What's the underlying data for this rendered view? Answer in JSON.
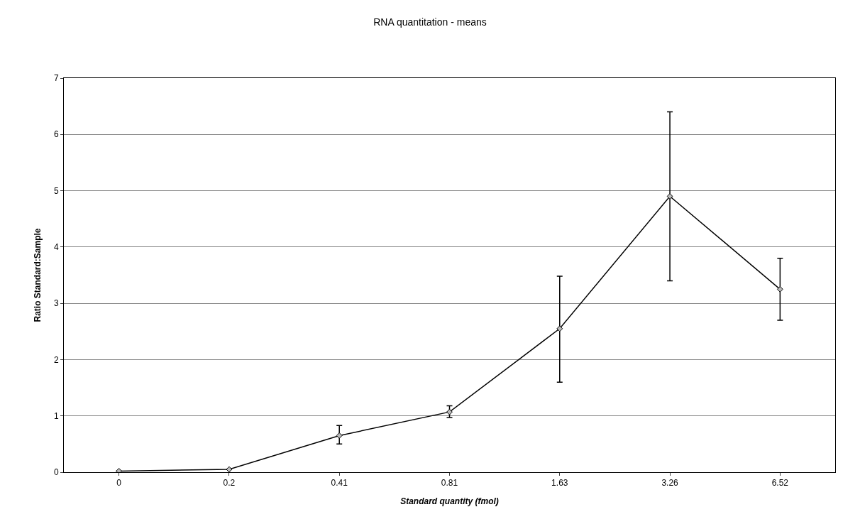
{
  "chart_data": {
    "type": "line",
    "title": "RNA quantitation - means",
    "xlabel": "Standard quantity (fmol)",
    "ylabel": "Ratio Standard:Sample",
    "categories": [
      "0",
      "0.2",
      "0.41",
      "0.81",
      "1.63",
      "3.26",
      "6.52"
    ],
    "series": [
      {
        "color": "#000000",
        "values": [
          0.02,
          0.05,
          0.65,
          1.07,
          2.55,
          4.9,
          3.25
        ],
        "errors": [
          null,
          null,
          [
            0.5,
            0.83
          ],
          [
            0.97,
            1.18
          ],
          [
            1.6,
            3.48
          ],
          [
            3.4,
            6.4
          ],
          [
            2.7,
            3.8
          ]
        ]
      }
    ],
    "ylim": [
      0,
      7
    ],
    "yticks": [
      0,
      1,
      2,
      3,
      4,
      5,
      6,
      7
    ],
    "grid": "y",
    "marker": "diamond",
    "line_style": "solid"
  }
}
